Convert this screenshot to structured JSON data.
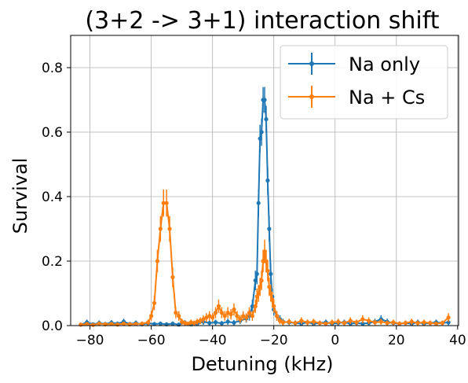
{
  "chart_data": {
    "type": "line",
    "title": "(3+2 -> 3+1) interaction shift",
    "xlabel": "Detuning (kHz)",
    "ylabel": "Survival",
    "xlim": [
      -86.3,
      40.3
    ],
    "ylim": [
      0,
      0.9
    ],
    "xticks": [
      -80,
      -60,
      -40,
      -20,
      0,
      20,
      40
    ],
    "yticks": [
      0.0,
      0.2,
      0.4,
      0.6,
      0.8
    ],
    "xtick_labels": [
      "−80",
      "−60",
      "−40",
      "−20",
      "0",
      "20",
      "40"
    ],
    "ytick_labels": [
      "0.0",
      "0.2",
      "0.4",
      "0.6",
      "0.8"
    ],
    "grid": true,
    "legend_position": "top-right",
    "series": [
      {
        "name": "Na only",
        "color": "#1f77b4",
        "points": [
          [
            -83,
            0.003
          ],
          [
            -81,
            0.01
          ],
          [
            -79,
            0.004
          ],
          [
            -77,
            0.008
          ],
          [
            -75,
            0.005
          ],
          [
            -73,
            0.009
          ],
          [
            -71,
            0.006
          ],
          [
            -69,
            0.012
          ],
          [
            -67,
            0.005
          ],
          [
            -65,
            0.008
          ],
          [
            -63,
            0.004
          ],
          [
            -61,
            0.007
          ],
          [
            -59,
            0.005
          ],
          [
            -57,
            0.006
          ],
          [
            -55,
            0.004
          ],
          [
            -53,
            0.006
          ],
          [
            -51,
            0.003
          ],
          [
            -49,
            0.009
          ],
          [
            -47,
            0.004
          ],
          [
            -45,
            0.006
          ],
          [
            -43,
            0.012
          ],
          [
            -41,
            0.008
          ],
          [
            -39,
            0.01
          ],
          [
            -37,
            0.007
          ],
          [
            -35,
            0.012
          ],
          [
            -33,
            0.009
          ],
          [
            -31,
            0.015
          ],
          [
            -29,
            0.022
          ],
          [
            -28,
            0.03
          ],
          [
            -27,
            0.06
          ],
          [
            -26,
            0.14
          ],
          [
            -25.5,
            0.16
          ],
          [
            -25,
            0.38
          ],
          [
            -24.5,
            0.58
          ],
          [
            -24,
            0.6
          ],
          [
            -23.5,
            0.7
          ],
          [
            -23,
            0.7
          ],
          [
            -22.5,
            0.64
          ],
          [
            -22,
            0.45
          ],
          [
            -21.5,
            0.3
          ],
          [
            -21,
            0.16
          ],
          [
            -20.5,
            0.09
          ],
          [
            -20,
            0.05
          ],
          [
            -19,
            0.03
          ],
          [
            -18,
            0.02
          ],
          [
            -17,
            0.012
          ],
          [
            -15,
            0.01
          ],
          [
            -13,
            0.008
          ],
          [
            -11,
            0.006
          ],
          [
            -9,
            0.01
          ],
          [
            -7,
            0.006
          ],
          [
            -5,
            0.008
          ],
          [
            -3,
            0.01
          ],
          [
            -1,
            0.006
          ],
          [
            1,
            0.008
          ],
          [
            3,
            0.01
          ],
          [
            5,
            0.006
          ],
          [
            7,
            0.008
          ],
          [
            9,
            0.006
          ],
          [
            11,
            0.008
          ],
          [
            13,
            0.012
          ],
          [
            15,
            0.02
          ],
          [
            17,
            0.012
          ],
          [
            19,
            0.008
          ],
          [
            21,
            0.006
          ],
          [
            23,
            0.008
          ],
          [
            25,
            0.006
          ],
          [
            27,
            0.01
          ],
          [
            29,
            0.006
          ],
          [
            31,
            0.008
          ],
          [
            33,
            0.01
          ],
          [
            35,
            0.008
          ],
          [
            37,
            0.01
          ]
        ]
      },
      {
        "name": "Na + Cs",
        "color": "#ff7f0e",
        "points": [
          [
            -83,
            0.003
          ],
          [
            -81,
            0.005
          ],
          [
            -79,
            0.002
          ],
          [
            -77,
            0.006
          ],
          [
            -75,
            0.004
          ],
          [
            -73,
            0.005
          ],
          [
            -71,
            0.003
          ],
          [
            -69,
            0.006
          ],
          [
            -67,
            0.004
          ],
          [
            -65,
            0.005
          ],
          [
            -63,
            0.006
          ],
          [
            -61,
            0.01
          ],
          [
            -60,
            0.03
          ],
          [
            -59,
            0.07
          ],
          [
            -58,
            0.2
          ],
          [
            -57,
            0.3
          ],
          [
            -56,
            0.38
          ],
          [
            -55,
            0.38
          ],
          [
            -54,
            0.3
          ],
          [
            -53,
            0.15
          ],
          [
            -52,
            0.04
          ],
          [
            -51,
            0.03
          ],
          [
            -50,
            0.012
          ],
          [
            -49,
            0.008
          ],
          [
            -48,
            0.006
          ],
          [
            -47,
            0.01
          ],
          [
            -46,
            0.008
          ],
          [
            -45,
            0.012
          ],
          [
            -44,
            0.015
          ],
          [
            -43,
            0.02
          ],
          [
            -42,
            0.025
          ],
          [
            -41,
            0.03
          ],
          [
            -40,
            0.025
          ],
          [
            -39,
            0.04
          ],
          [
            -38,
            0.06
          ],
          [
            -37,
            0.04
          ],
          [
            -36,
            0.03
          ],
          [
            -35,
            0.04
          ],
          [
            -34,
            0.035
          ],
          [
            -33,
            0.05
          ],
          [
            -32,
            0.03
          ],
          [
            -31,
            0.02
          ],
          [
            -30,
            0.03
          ],
          [
            -29,
            0.025
          ],
          [
            -28,
            0.04
          ],
          [
            -27,
            0.03
          ],
          [
            -26,
            0.06
          ],
          [
            -25.5,
            0.09
          ],
          [
            -25,
            0.1
          ],
          [
            -24.5,
            0.12
          ],
          [
            -24,
            0.14
          ],
          [
            -23.5,
            0.2
          ],
          [
            -23,
            0.23
          ],
          [
            -22.5,
            0.2
          ],
          [
            -22,
            0.17
          ],
          [
            -21.5,
            0.12
          ],
          [
            -21,
            0.1
          ],
          [
            -20.5,
            0.08
          ],
          [
            -20,
            0.06
          ],
          [
            -19,
            0.03
          ],
          [
            -18,
            0.015
          ],
          [
            -17,
            0.01
          ],
          [
            -15,
            0.012
          ],
          [
            -13,
            0.008
          ],
          [
            -11,
            0.015
          ],
          [
            -9,
            0.01
          ],
          [
            -7,
            0.012
          ],
          [
            -5,
            0.008
          ],
          [
            -3,
            0.006
          ],
          [
            -1,
            0.01
          ],
          [
            1,
            0.012
          ],
          [
            3,
            0.008
          ],
          [
            5,
            0.015
          ],
          [
            7,
            0.01
          ],
          [
            9,
            0.02
          ],
          [
            11,
            0.015
          ],
          [
            13,
            0.01
          ],
          [
            15,
            0.012
          ],
          [
            17,
            0.008
          ],
          [
            19,
            0.01
          ],
          [
            21,
            0.006
          ],
          [
            23,
            0.008
          ],
          [
            25,
            0.012
          ],
          [
            27,
            0.008
          ],
          [
            29,
            0.01
          ],
          [
            31,
            0.008
          ],
          [
            33,
            0.006
          ],
          [
            35,
            0.008
          ],
          [
            37,
            0.025
          ]
        ]
      }
    ]
  }
}
